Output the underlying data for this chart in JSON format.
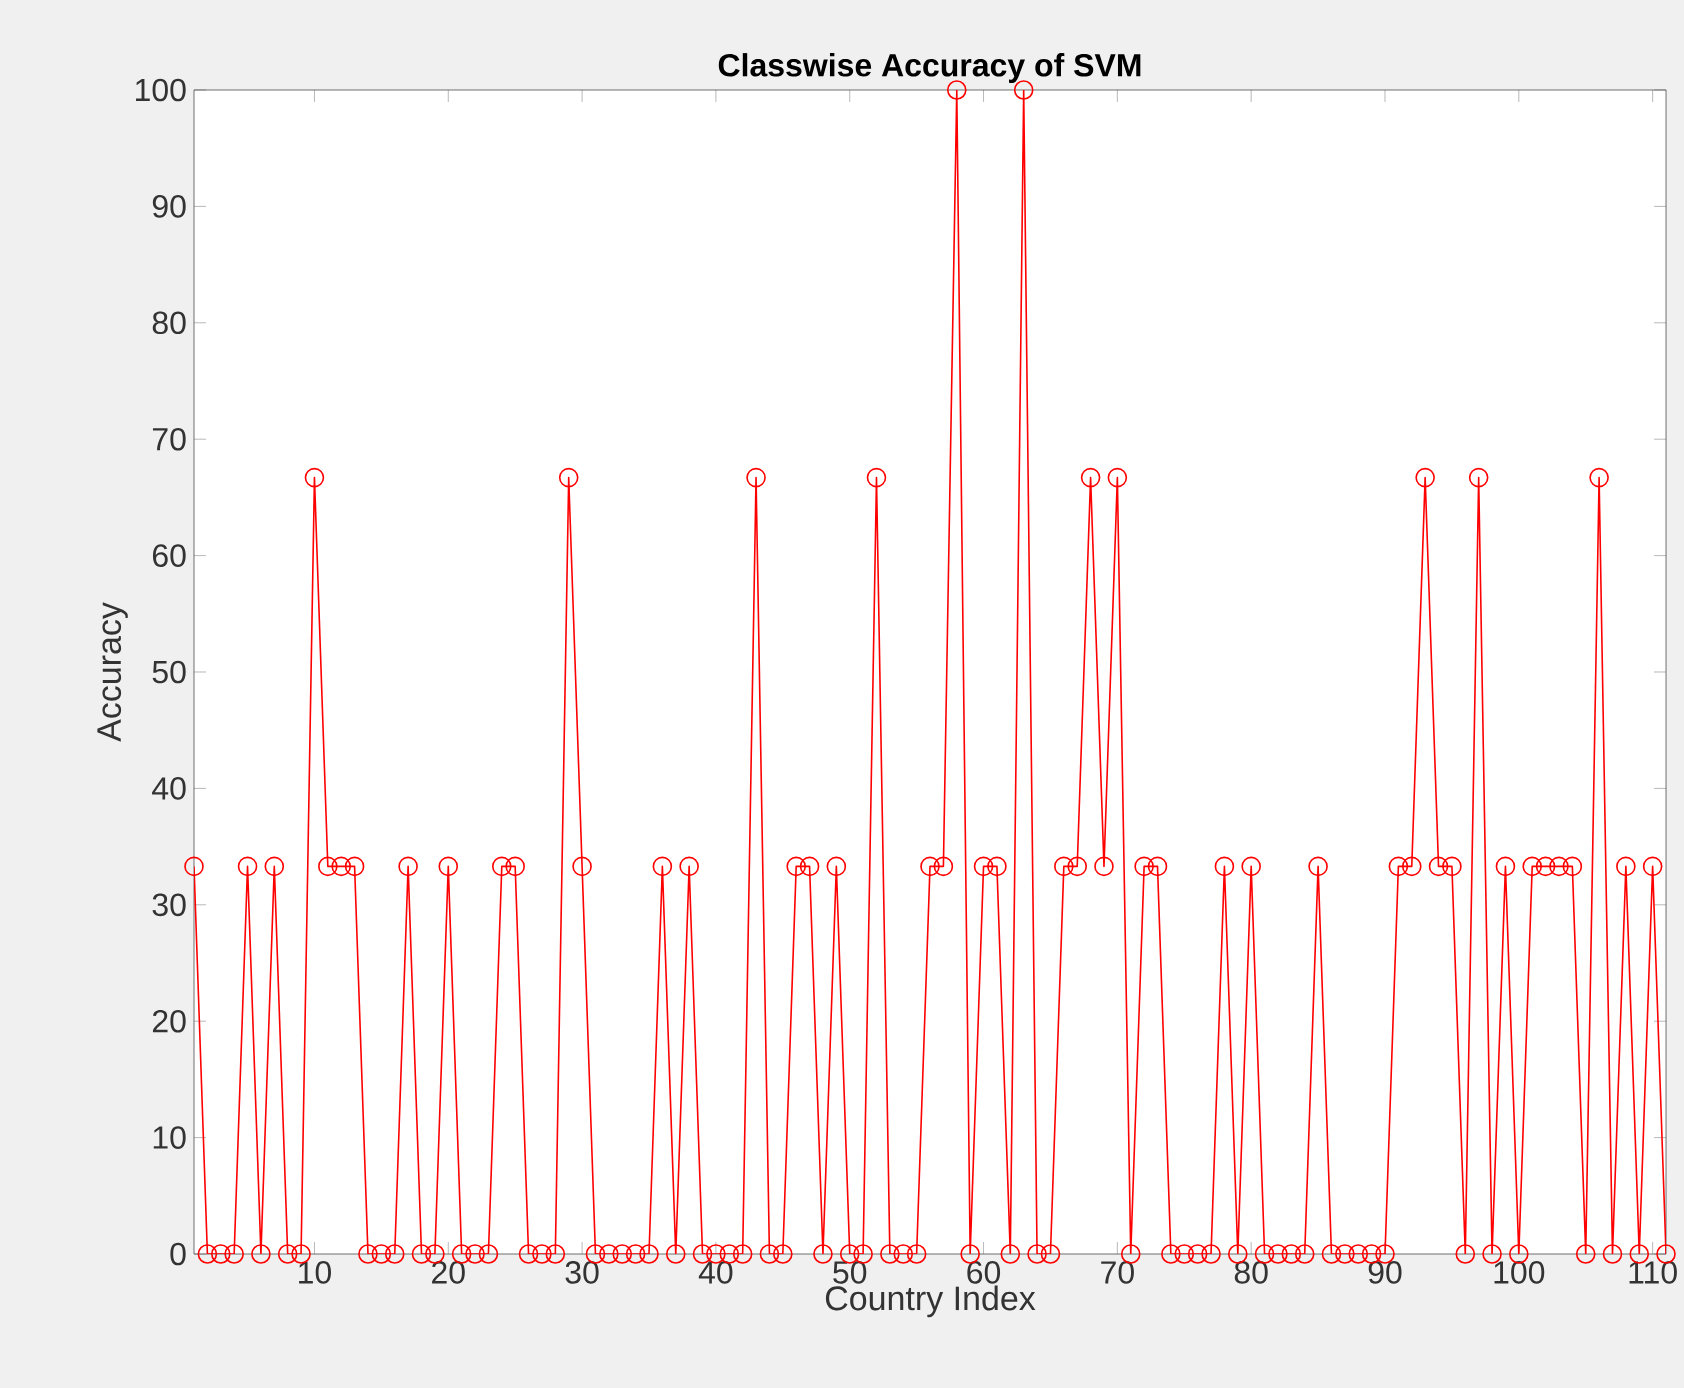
{
  "chart_data": {
    "type": "line",
    "title": "Classwise Accuracy of SVM",
    "xlabel": "Country Index",
    "ylabel": "Accuracy",
    "x": [
      1,
      2,
      3,
      4,
      5,
      6,
      7,
      8,
      9,
      10,
      11,
      12,
      13,
      14,
      15,
      16,
      17,
      18,
      19,
      20,
      21,
      22,
      23,
      24,
      25,
      26,
      27,
      28,
      29,
      30,
      31,
      32,
      33,
      34,
      35,
      36,
      37,
      38,
      39,
      40,
      41,
      42,
      43,
      44,
      45,
      46,
      47,
      48,
      49,
      50,
      51,
      52,
      53,
      54,
      55,
      56,
      57,
      58,
      59,
      60,
      61,
      62,
      63,
      64,
      65,
      66,
      67,
      68,
      69,
      70,
      71,
      72,
      73,
      74,
      75,
      76,
      77,
      78,
      79,
      80,
      81,
      82,
      83,
      84,
      85,
      86,
      87,
      88,
      89,
      90,
      91,
      92,
      93,
      94,
      95,
      96,
      97,
      98,
      99,
      100,
      101,
      102,
      103,
      104,
      105,
      106,
      107,
      108,
      109,
      110,
      111
    ],
    "series": [
      {
        "color": "#ff0000",
        "values": [
          33.3,
          0,
          0,
          0,
          33.3,
          0,
          33.3,
          0,
          0,
          66.7,
          33.3,
          33.3,
          33.3,
          0,
          0,
          0,
          33.3,
          0,
          0,
          33.3,
          0,
          0,
          0,
          33.3,
          33.3,
          0,
          0,
          0,
          66.7,
          33.3,
          0,
          0,
          0,
          0,
          0,
          33.3,
          0,
          33.3,
          0,
          0,
          0,
          0,
          66.7,
          0,
          0,
          33.3,
          33.3,
          0,
          33.3,
          0,
          0,
          66.7,
          0,
          0,
          0,
          33.3,
          33.3,
          100,
          0,
          33.3,
          33.3,
          0,
          100,
          0,
          0,
          33.3,
          33.3,
          66.7,
          33.3,
          66.7,
          0,
          33.3,
          33.3,
          0,
          0,
          0,
          0,
          33.3,
          0,
          33.3,
          0,
          0,
          0,
          0,
          33.3,
          0,
          0,
          0,
          0,
          0,
          33.3,
          33.3,
          66.7,
          33.3,
          33.3,
          0,
          66.7,
          0,
          33.3,
          0,
          33.3,
          33.3,
          33.3,
          33.3,
          0,
          66.7,
          0,
          33.3,
          0,
          33.3,
          0
        ]
      }
    ],
    "xlim": [
      1,
      111
    ],
    "xticks": [
      10,
      20,
      30,
      40,
      50,
      60,
      70,
      80,
      90,
      100,
      110
    ],
    "ylim": [
      0,
      100
    ],
    "yticks": [
      0,
      10,
      20,
      30,
      40,
      50,
      60,
      70,
      80,
      90,
      100
    ],
    "marker": "circle",
    "line_style": "solid"
  }
}
